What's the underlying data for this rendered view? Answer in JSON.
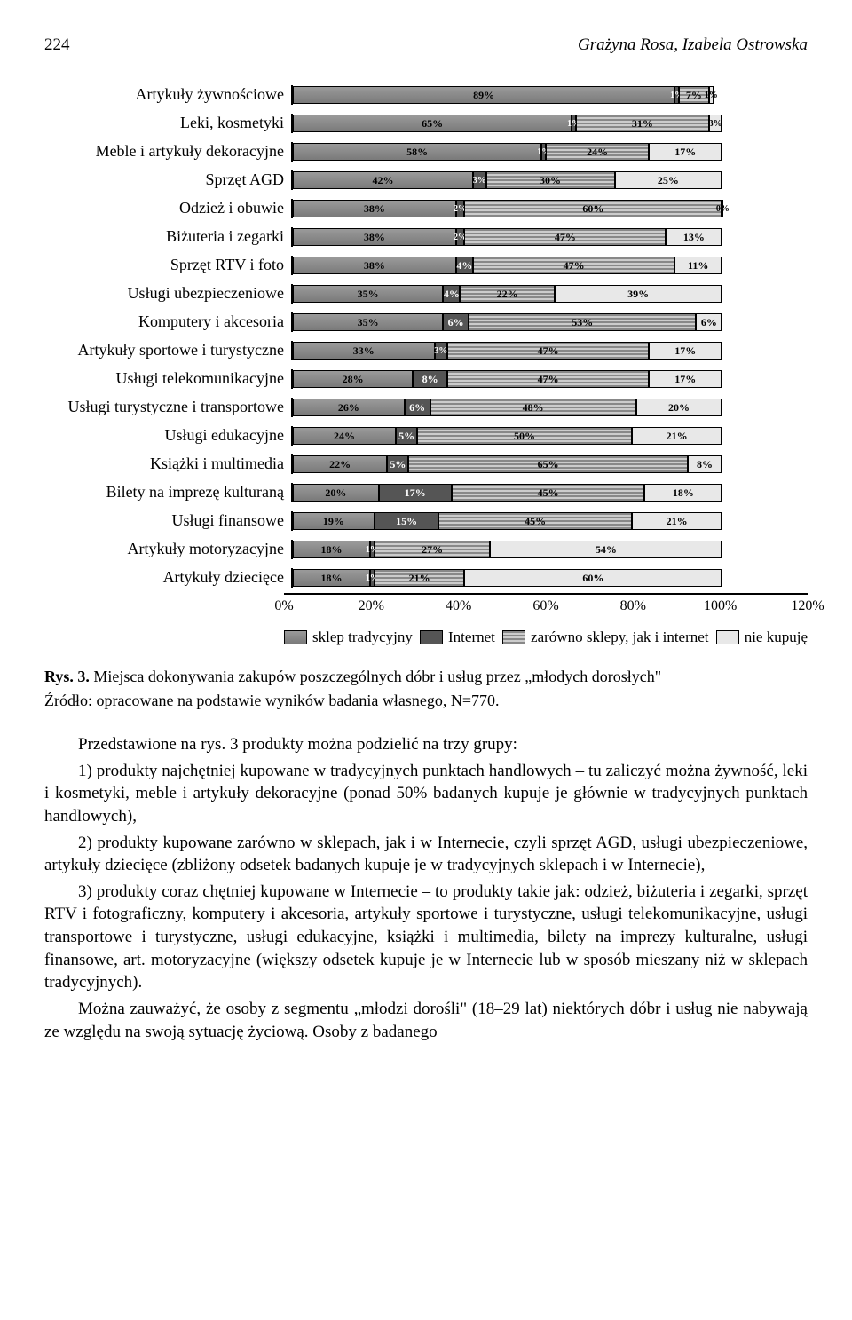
{
  "header": {
    "page_number": "224",
    "authors": "Grażyna Rosa, Izabela Ostrowska"
  },
  "chart": {
    "type": "stacked-bar-horizontal",
    "x_ticks": [
      "0%",
      "20%",
      "40%",
      "60%",
      "80%",
      "100%",
      "120%"
    ],
    "series_colors": [
      "#8a8a8a",
      "#555555",
      "#bdbdbd",
      "#e8e8e8"
    ],
    "legend": [
      {
        "label": "sklep tradycyjny",
        "fill": 0
      },
      {
        "label": "Internet",
        "fill": 1
      },
      {
        "label": "zarówno sklepy, jak i internet",
        "fill": 2
      },
      {
        "label": "nie kupuję",
        "fill": 3
      }
    ],
    "rows": [
      {
        "label": "Artykuły żywnościowe",
        "values": [
          89,
          1,
          7,
          1
        ],
        "show": [
          "89%",
          "1%",
          "7%",
          "1%"
        ]
      },
      {
        "label": "Leki, kosmetyki",
        "values": [
          65,
          1,
          31,
          3
        ],
        "show": [
          "65%",
          "1%",
          "31%",
          "3%"
        ]
      },
      {
        "label": "Meble i artykuły dekoracyjne",
        "values": [
          58,
          1,
          24,
          17
        ],
        "show": [
          "58%",
          "1%",
          "24%",
          "17%"
        ]
      },
      {
        "label": "Sprzęt AGD",
        "values": [
          42,
          3,
          30,
          25
        ],
        "show": [
          "42%",
          "3%",
          "30%",
          "25%"
        ]
      },
      {
        "label": "Odzież i obuwie",
        "values": [
          38,
          2,
          60,
          0
        ],
        "show": [
          "38%",
          "2%",
          "60%",
          "0%"
        ]
      },
      {
        "label": "Biżuteria i zegarki",
        "values": [
          38,
          2,
          47,
          13
        ],
        "show": [
          "38%",
          "2%",
          "47%",
          "13%"
        ]
      },
      {
        "label": "Sprzęt RTV i foto",
        "values": [
          38,
          4,
          47,
          11
        ],
        "show": [
          "38%",
          "4%",
          "47%",
          "11%"
        ]
      },
      {
        "label": "Usługi ubezpieczeniowe",
        "values": [
          35,
          4,
          22,
          39
        ],
        "show": [
          "35%",
          "4%",
          "22%",
          "39%"
        ]
      },
      {
        "label": "Komputery i akcesoria",
        "values": [
          35,
          6,
          53,
          6
        ],
        "show": [
          "35%",
          "6%",
          "53%",
          "6%"
        ]
      },
      {
        "label": "Artykuły sportowe i turystyczne",
        "values": [
          33,
          3,
          47,
          17
        ],
        "show": [
          "33%",
          "3%",
          "47%",
          "17%"
        ]
      },
      {
        "label": "Usługi telekomunikacyjne",
        "values": [
          28,
          8,
          47,
          17
        ],
        "show": [
          "28%",
          "8%",
          "47%",
          "17%"
        ]
      },
      {
        "label": "Usługi turystyczne i transportowe",
        "values": [
          26,
          6,
          48,
          20
        ],
        "show": [
          "26%",
          "6%",
          "48%",
          "20%"
        ]
      },
      {
        "label": "Usługi edukacyjne",
        "values": [
          24,
          5,
          50,
          21
        ],
        "show": [
          "24%",
          "5%",
          "50%",
          "21%"
        ]
      },
      {
        "label": "Książki i multimedia",
        "values": [
          22,
          5,
          65,
          8
        ],
        "show": [
          "22%",
          "5%",
          "65%",
          "8%"
        ]
      },
      {
        "label": "Bilety na imprezę kulturaną",
        "values": [
          20,
          17,
          45,
          18
        ],
        "show": [
          "20%",
          "17%",
          "45%",
          "18%"
        ]
      },
      {
        "label": "Usługi finansowe",
        "values": [
          19,
          15,
          45,
          21
        ],
        "show": [
          "19%",
          "15%",
          "45%",
          "21%"
        ]
      },
      {
        "label": "Artykuły motoryzacyjne",
        "values": [
          18,
          1,
          27,
          54
        ],
        "show": [
          "18%",
          "1%",
          "27%",
          "54%"
        ]
      },
      {
        "label": "Artykuły dziecięce",
        "values": [
          18,
          1,
          21,
          60
        ],
        "show": [
          "18%",
          "1%",
          "21%",
          "60%"
        ]
      }
    ]
  },
  "caption_prefix": "Rys. 3.",
  "caption_text": "Miejsca dokonywania zakupów poszczególnych dóbr i usług przez „młodych dorosłych\"",
  "source": "Źródło: opracowane na podstawie wyników badania własnego, N=770.",
  "paragraphs": [
    "Przedstawione na rys. 3 produkty można podzielić na trzy grupy:",
    "1) produkty najchętniej kupowane w tradycyjnych punktach handlowych – tu zaliczyć można żywność, leki i kosmetyki, meble i artykuły dekoracyjne (ponad 50% badanych kupuje je głównie w tradycyjnych punktach handlowych),",
    "2) produkty kupowane zarówno w sklepach, jak i w Internecie, czyli sprzęt AGD, usługi ubezpieczeniowe, artykuły dziecięce (zbliżony odsetek badanych kupuje je w tradycyjnych sklepach i w Internecie),",
    "3) produkty coraz chętniej kupowane w Internecie – to produkty takie jak: odzież, biżuteria i zegarki, sprzęt RTV i fotograficzny, komputery i akcesoria, artykuły sportowe i turystyczne, usługi telekomunikacyjne, usługi transportowe i turystyczne, usługi edukacyjne, książki i multimedia, bilety na imprezy kulturalne, usługi finansowe, art. motoryzacyjne (większy odsetek kupuje je w Internecie lub w sposób mieszany niż w sklepach tradycyjnych).",
    "Można zauważyć, że osoby z segmentu „młodzi dorośli\" (18–29 lat) niektórych dóbr i usług nie nabywają ze względu na swoją sytuację życiową. Osoby z badanego"
  ]
}
